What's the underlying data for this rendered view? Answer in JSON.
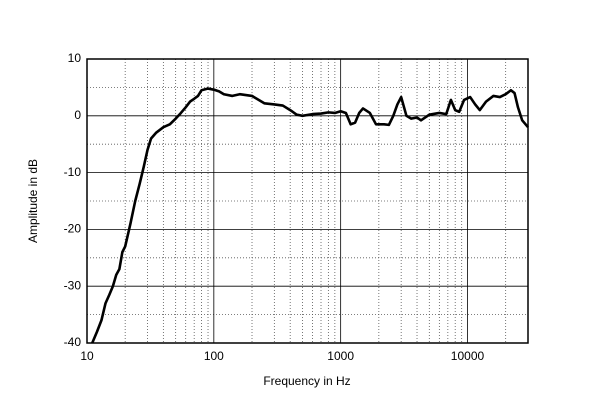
{
  "chart_data": {
    "type": "line",
    "x_label": "Frequency in Hz",
    "y_label": "Amplitude in dB",
    "xscale": "log",
    "xlim": [
      10,
      30000
    ],
    "ylim": [
      -40,
      10
    ],
    "xticks": [
      10,
      100,
      1000,
      10000
    ],
    "yticks": [
      -40,
      -30,
      -20,
      -10,
      0,
      10
    ],
    "x_minor_grid": [
      20,
      30,
      40,
      50,
      60,
      70,
      80,
      90,
      200,
      300,
      400,
      500,
      600,
      700,
      800,
      900,
      2000,
      3000,
      4000,
      5000,
      6000,
      7000,
      8000,
      9000,
      20000
    ],
    "y_minor_grid": [
      -35,
      -25,
      -15,
      -5,
      5
    ],
    "grid": true,
    "series": [
      {
        "color": "#000000",
        "x": [
          11,
          12,
          13,
          14,
          15,
          16,
          17,
          18,
          19,
          20,
          22,
          24,
          26,
          28,
          30,
          32,
          35,
          40,
          45,
          50,
          55,
          60,
          65,
          70,
          75,
          80,
          90,
          100,
          110,
          120,
          140,
          160,
          200,
          250,
          300,
          350,
          400,
          450,
          500,
          600,
          700,
          800,
          900,
          1000,
          1100,
          1200,
          1300,
          1400,
          1500,
          1700,
          1900,
          2200,
          2400,
          2600,
          2800,
          3000,
          3300,
          3600,
          4000,
          4300,
          5000,
          6000,
          6800,
          7400,
          8000,
          8600,
          9400,
          10500,
          11500,
          12500,
          14000,
          16000,
          18000,
          20000,
          22000,
          23500,
          25000,
          27000,
          30000
        ],
        "values": [
          -40,
          -38,
          -36,
          -33,
          -31.5,
          -30,
          -28,
          -27,
          -24,
          -23,
          -19,
          -15,
          -12,
          -9,
          -6,
          -4,
          -3,
          -2,
          -1.5,
          -0.5,
          0.5,
          1.5,
          2.5,
          3,
          3.5,
          4.5,
          4.8,
          4.6,
          4.3,
          3.8,
          3.5,
          3.8,
          3.5,
          2.2,
          2,
          1.8,
          1,
          0.2,
          0,
          0.3,
          0.4,
          0.6,
          0.5,
          0.8,
          0.5,
          -1.5,
          -1.2,
          0.5,
          1.3,
          0.5,
          -1.5,
          -1.5,
          -1.6,
          0,
          2,
          3.3,
          0,
          -0.5,
          -0.3,
          -0.8,
          0.2,
          0.5,
          0.3,
          2.8,
          1,
          0.7,
          2.8,
          3.3,
          2,
          1,
          2.5,
          3.5,
          3.3,
          3.8,
          4.5,
          4,
          1.5,
          -0.8,
          -2
        ]
      }
    ]
  }
}
